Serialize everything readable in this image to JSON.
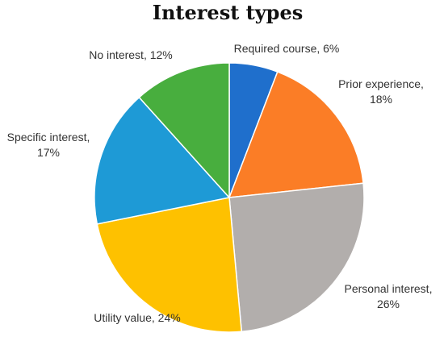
{
  "chart_data": {
    "type": "pie",
    "title": "Interest types",
    "slices": [
      {
        "category": "Required course",
        "value": 6,
        "label_lines": [
          "Required course, 6%"
        ],
        "color": "#1f6fcc"
      },
      {
        "category": "Prior experience",
        "value": 18,
        "label_lines": [
          "Prior experience,",
          "18%"
        ],
        "color": "#fb7d26"
      },
      {
        "category": "Personal interest",
        "value": 26,
        "label_lines": [
          "Personal interest,",
          "26%"
        ],
        "color": "#b2aeac"
      },
      {
        "category": "Utility value",
        "value": 24,
        "label_lines": [
          "Utility value, 24%"
        ],
        "color": "#fec100"
      },
      {
        "category": "Specific interest",
        "value": 17,
        "label_lines": [
          "Specific interest,",
          "17%"
        ],
        "color": "#1e9ad6"
      },
      {
        "category": "No interest",
        "value": 12,
        "label_lines": [
          "No interest, 12%"
        ],
        "color": "#48ae3e"
      }
    ],
    "start_angle": "12 o'clock",
    "direction": "clockwise",
    "legend": "none"
  }
}
